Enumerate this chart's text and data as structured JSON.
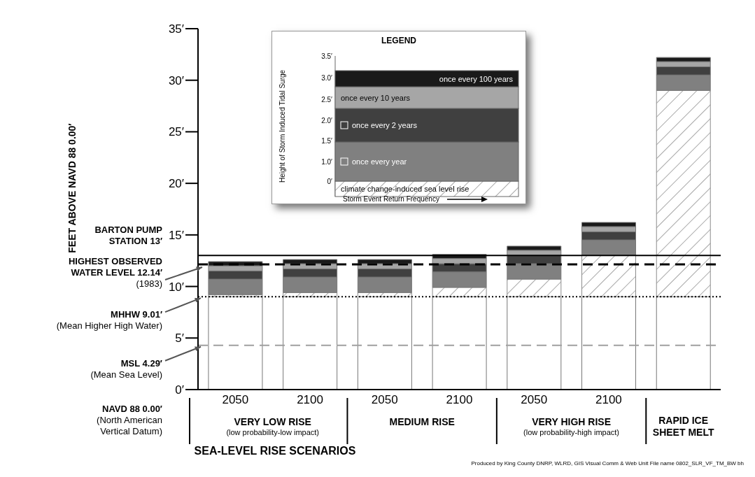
{
  "chart_data": {
    "type": "bar",
    "stacked": true,
    "xlabel": "SEA-LEVEL RISE SCENARIOS",
    "legend_title": "LEGEND",
    "legend": "top",
    "categories": [
      "2050",
      "2100",
      "2050",
      "2100",
      "2050",
      "2100",
      null
    ],
    "series": [
      {
        "color": "#ffffff",
        "values": [
          9.01,
          9.01,
          9.01,
          9.01,
          9.01,
          9.01,
          9.01
        ]
      },
      {
        "name": "climate change-induced sea level rise",
        "color": "#8c8c8c",
        "values": [
          0.2,
          0.4,
          0.4,
          0.9,
          1.7,
          4.0,
          20.0
        ]
      },
      {
        "name": "once every year",
        "color": "#808080",
        "values": [
          1.5,
          1.5,
          1.5,
          1.5,
          1.5,
          1.5,
          1.5
        ]
      },
      {
        "name": "once every 2 years",
        "color": "#404040",
        "values": [
          0.8,
          0.8,
          0.8,
          0.8,
          0.8,
          0.8,
          0.8
        ]
      },
      {
        "name": "once every 10 years",
        "color": "#a6a6a6",
        "values": [
          0.5,
          0.5,
          0.5,
          0.5,
          0.5,
          0.5,
          0.5
        ]
      },
      {
        "name": "once every 100 years",
        "color": "#1a1a1a",
        "values": [
          0.4,
          0.4,
          0.4,
          0.4,
          0.4,
          0.4,
          0.4
        ]
      }
    ],
    "ylim": [
      0,
      35
    ],
    "yticks": [
      {
        "value": 0,
        "label": "0′"
      },
      {
        "value": 5,
        "label": "5′"
      },
      {
        "value": 10,
        "label": "10′"
      },
      {
        "value": 15,
        "label": "15′"
      },
      {
        "value": 20,
        "label": "20′"
      },
      {
        "value": 25,
        "label": "25′"
      },
      {
        "value": 30,
        "label": "30′"
      },
      {
        "value": 35,
        "label": "35′"
      }
    ],
    "ref_lines": [
      {
        "axis": "y",
        "value": 13,
        "label": "BARTON PUMP\nSTATION 13′",
        "color": "#000000",
        "line_style": "solid"
      },
      {
        "axis": "y",
        "value": 12.14,
        "label": "HIGHEST OBSERVED\nWATER LEVEL 12.14′\n(1983)",
        "color": "#000000",
        "line_style": "dashed"
      },
      {
        "axis": "y",
        "value": 9.01,
        "label": "MHHW 9.01′\n(Mean Higher High Water)",
        "color": "#000000",
        "line_style": "dotted"
      },
      {
        "axis": "y",
        "value": 4.29,
        "label": "MSL 4.29′\n(Mean Sea Level)",
        "color": "#a0a0a0",
        "line_style": "dashed"
      }
    ],
    "annotations": [
      "VERY LOW RISE",
      "(low probability-low impact)",
      "MEDIUM RISE",
      "VERY HIGH RISE",
      "(low probability-high impact)",
      "RAPID ICE SHEET MELT",
      "Height of Storm Induced Tidal Surge",
      "Storm Event Return Frequency",
      "3.5′",
      "3.0′",
      "2.5′",
      "2.0′",
      "1.5′",
      "1.0′",
      "0′",
      "Produced by King County DNRP, WLRD, GIS Visual Comm & Web Unit File name 0802_SLR_VF_TM_BW  bh",
      "FEET ABOVE NAVD 88 0.00′",
      "NAVD 88 0.00′\n(North American\nVertical Datum)"
    ]
  }
}
